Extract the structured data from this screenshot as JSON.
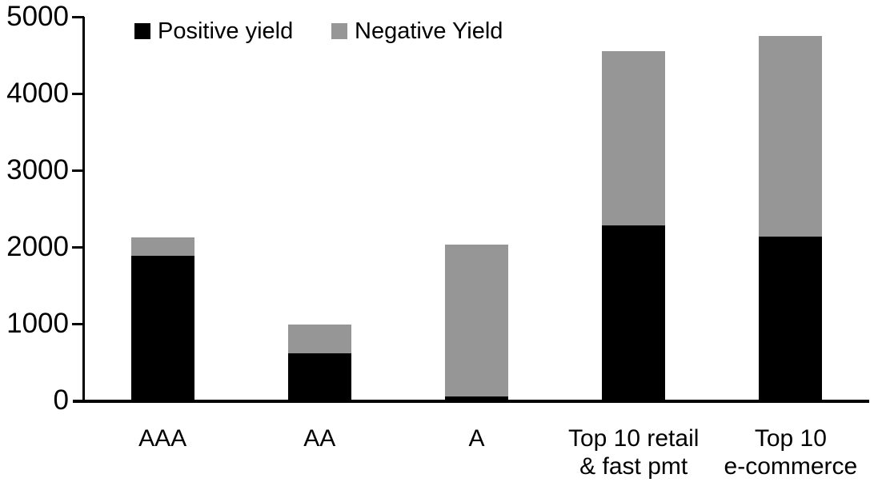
{
  "chart_data": {
    "type": "bar",
    "stacked": true,
    "title": "",
    "xlabel": "",
    "ylabel": "",
    "categories": [
      "AAA",
      "AA",
      "A",
      "Top 10 retail\n& fast pmt",
      "Top 10\ne-commerce"
    ],
    "series": [
      {
        "name": "Positive yield",
        "color": "#000000",
        "values": [
          1890,
          610,
          50,
          2280,
          2140
        ]
      },
      {
        "name": "Negative Yield",
        "color": "#969696",
        "values": [
          230,
          380,
          1980,
          2270,
          2610
        ]
      }
    ],
    "ylim": [
      0,
      5000
    ],
    "yticks": [
      0,
      1000,
      2000,
      3000,
      4000,
      5000
    ],
    "legend_position": "top-left",
    "grid": false,
    "axis_color": "#000000",
    "background": "#ffffff"
  }
}
